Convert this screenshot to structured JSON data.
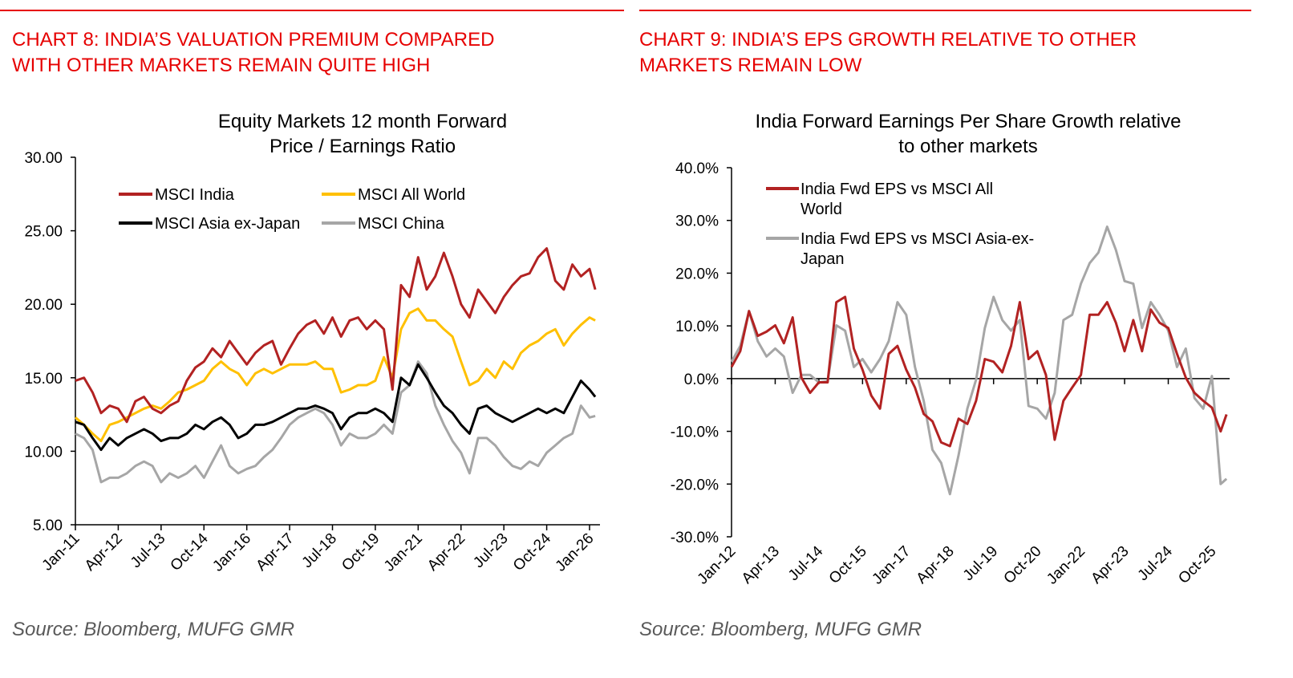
{
  "left": {
    "header": [
      "CHART 8: INDIA’S VALUATION PREMIUM COMPARED",
      "WITH OTHER MARKETS REMAIN QUITE HIGH"
    ],
    "source": "Source: Bloomberg, MUFG GMR"
  },
  "right": {
    "header": [
      "CHART 9: INDIA’S EPS GROWTH RELATIVE TO OTHER",
      "MARKETS REMAIN LOW"
    ],
    "source": "Source: Bloomberg, MUFG GMR"
  },
  "colors": {
    "header": "#e60000",
    "india": "#b22222",
    "world": "#ffc000",
    "asia": "#000000",
    "china": "#a6a6a6"
  },
  "chart_data": [
    {
      "type": "line",
      "title": [
        "Equity Markets 12 month Forward",
        "Price / Earnings Ratio"
      ],
      "ylim": [
        5,
        30
      ],
      "yticks": [
        "30.00",
        "25.00",
        "20.00",
        "15.00",
        "10.00",
        "5.00"
      ],
      "xticks": [
        "Jan-11",
        "Apr-12",
        "Jul-13",
        "Oct-14",
        "Jan-16",
        "Apr-17",
        "Jul-18",
        "Oct-19",
        "Jan-21",
        "Apr-22",
        "Jul-23",
        "Oct-24",
        "Jan-26"
      ],
      "x": [
        "2011-01",
        "2011-04",
        "2011-07",
        "2011-10",
        "2012-01",
        "2012-04",
        "2012-07",
        "2012-10",
        "2013-01",
        "2013-04",
        "2013-07",
        "2013-10",
        "2014-01",
        "2014-04",
        "2014-07",
        "2014-10",
        "2015-01",
        "2015-04",
        "2015-07",
        "2015-10",
        "2016-01",
        "2016-04",
        "2016-07",
        "2016-10",
        "2017-01",
        "2017-04",
        "2017-07",
        "2017-10",
        "2018-01",
        "2018-04",
        "2018-07",
        "2018-10",
        "2019-01",
        "2019-04",
        "2019-07",
        "2019-10",
        "2020-01",
        "2020-04",
        "2020-07",
        "2020-10",
        "2021-01",
        "2021-04",
        "2021-07",
        "2021-10",
        "2022-01",
        "2022-04",
        "2022-07",
        "2022-10",
        "2023-01",
        "2023-04",
        "2023-07",
        "2023-10",
        "2024-01",
        "2024-04",
        "2024-07",
        "2024-10",
        "2025-01",
        "2025-04",
        "2025-07",
        "2025-10",
        "2026-01",
        "2026-03"
      ],
      "legend": "top-left",
      "series": [
        {
          "name": "MSCI India",
          "color": "#b22222",
          "values": [
            14.8,
            15.0,
            14.0,
            12.6,
            13.1,
            12.9,
            12.0,
            13.4,
            13.7,
            12.9,
            12.6,
            13.1,
            13.4,
            14.8,
            15.7,
            16.1,
            17.0,
            16.4,
            17.5,
            16.7,
            15.9,
            16.7,
            17.2,
            17.5,
            15.9,
            17.0,
            18.0,
            18.6,
            18.9,
            18.0,
            19.1,
            17.8,
            18.9,
            19.1,
            18.3,
            18.9,
            18.3,
            14.2,
            21.3,
            20.5,
            23.2,
            21.0,
            21.9,
            23.5,
            21.9,
            20.0,
            19.1,
            21.0,
            20.2,
            19.4,
            20.5,
            21.3,
            21.9,
            22.1,
            23.2,
            23.8,
            21.6,
            21.0,
            22.7,
            21.9,
            22.4,
            21.0
          ]
        },
        {
          "name": "MSCI All World",
          "color": "#ffc000",
          "values": [
            12.3,
            11.8,
            11.2,
            10.7,
            11.8,
            12.0,
            12.3,
            12.6,
            12.9,
            13.1,
            12.9,
            13.4,
            14.0,
            14.2,
            14.5,
            14.8,
            15.6,
            16.1,
            15.6,
            15.3,
            14.5,
            15.3,
            15.6,
            15.3,
            15.6,
            15.9,
            15.9,
            15.9,
            16.1,
            15.6,
            15.6,
            14.0,
            14.2,
            14.5,
            14.5,
            14.8,
            16.4,
            15.0,
            18.3,
            19.4,
            19.7,
            18.9,
            18.9,
            18.3,
            17.8,
            16.1,
            14.5,
            14.8,
            15.6,
            15.0,
            16.1,
            15.6,
            16.7,
            17.2,
            17.5,
            18.0,
            18.3,
            17.2,
            18.0,
            18.6,
            19.1,
            18.9
          ]
        },
        {
          "name": "MSCI Asia ex-Japan",
          "color": "#000000",
          "values": [
            12.0,
            11.8,
            10.9,
            10.1,
            10.9,
            10.4,
            10.9,
            11.2,
            11.5,
            11.2,
            10.7,
            10.9,
            10.9,
            11.2,
            11.8,
            11.5,
            12.0,
            12.3,
            11.8,
            10.9,
            11.2,
            11.8,
            11.8,
            12.0,
            12.3,
            12.6,
            12.9,
            12.9,
            13.1,
            12.9,
            12.6,
            11.5,
            12.3,
            12.6,
            12.6,
            12.9,
            12.6,
            12.0,
            15.0,
            14.5,
            15.9,
            15.0,
            14.0,
            13.1,
            12.6,
            11.8,
            11.2,
            12.9,
            13.1,
            12.6,
            12.3,
            12.0,
            12.3,
            12.6,
            12.9,
            12.6,
            12.9,
            12.6,
            13.7,
            14.8,
            14.2,
            13.7
          ]
        },
        {
          "name": "MSCI China",
          "color": "#a6a6a6",
          "values": [
            11.2,
            10.9,
            10.1,
            7.9,
            8.2,
            8.2,
            8.5,
            9.0,
            9.3,
            9.0,
            7.9,
            8.5,
            8.2,
            8.5,
            9.0,
            8.2,
            9.3,
            10.4,
            9.0,
            8.5,
            8.8,
            9.0,
            9.6,
            10.1,
            10.9,
            11.8,
            12.3,
            12.6,
            12.9,
            12.6,
            11.8,
            10.4,
            11.2,
            10.9,
            10.9,
            11.2,
            11.8,
            11.2,
            14.0,
            14.5,
            16.1,
            15.3,
            13.1,
            11.8,
            10.7,
            9.9,
            8.5,
            10.9,
            10.9,
            10.4,
            9.6,
            9.0,
            8.8,
            9.3,
            9.0,
            9.9,
            10.4,
            10.9,
            11.2,
            13.1,
            12.3,
            12.4
          ]
        }
      ]
    },
    {
      "type": "line",
      "title": [
        "India Forward Earnings Per Share Growth relative",
        "to other markets"
      ],
      "ylim": [
        -30,
        40
      ],
      "yticks": [
        "40.0%",
        "30.0%",
        "20.0%",
        "10.0%",
        "0.0%",
        "-10.0%",
        "-20.0%",
        "-30.0%"
      ],
      "xticks": [
        "Jan-12",
        "Apr-13",
        "Jul-14",
        "Oct-15",
        "Jan-17",
        "Apr-18",
        "Jul-19",
        "Oct-20",
        "Jan-22",
        "Apr-23",
        "Jul-24",
        "Oct-25"
      ],
      "x": [
        "2012-01",
        "2012-04",
        "2012-07",
        "2012-10",
        "2013-01",
        "2013-04",
        "2013-07",
        "2013-10",
        "2014-01",
        "2014-04",
        "2014-07",
        "2014-10",
        "2015-01",
        "2015-04",
        "2015-07",
        "2015-10",
        "2016-01",
        "2016-04",
        "2016-07",
        "2016-10",
        "2017-01",
        "2017-04",
        "2017-07",
        "2017-10",
        "2018-01",
        "2018-04",
        "2018-07",
        "2018-10",
        "2019-01",
        "2019-04",
        "2019-07",
        "2019-10",
        "2020-01",
        "2020-04",
        "2020-07",
        "2020-10",
        "2021-01",
        "2021-04",
        "2021-07",
        "2021-10",
        "2022-01",
        "2022-04",
        "2022-07",
        "2022-10",
        "2023-01",
        "2023-04",
        "2023-07",
        "2023-10",
        "2024-01",
        "2024-04",
        "2024-07",
        "2024-10",
        "2025-01",
        "2025-04",
        "2025-07",
        "2025-10",
        "2026-01",
        "2026-03"
      ],
      "legend": "top-left",
      "series": [
        {
          "name": "India Fwd EPS vs MSCI All World",
          "legend_lines": [
            "India Fwd EPS vs MSCI All",
            "World"
          ],
          "color": "#b22222",
          "values": [
            2.2,
            5.2,
            12.8,
            8.1,
            8.9,
            10.1,
            6.7,
            11.6,
            0.2,
            -2.7,
            -0.7,
            -0.7,
            14.5,
            15.5,
            5.7,
            1.7,
            -3.2,
            -5.7,
            4.7,
            6.2,
            1.7,
            -1.7,
            -6.7,
            -8.1,
            -12.1,
            -12.8,
            -7.6,
            -8.6,
            -4.2,
            3.7,
            3.2,
            1.2,
            6.2,
            14.5,
            3.7,
            5.2,
            0.7,
            -11.6,
            -4.2,
            -1.7,
            0.7,
            12.1,
            12.1,
            14.5,
            10.6,
            5.2,
            11.1,
            5.2,
            13.1,
            10.6,
            9.6,
            4.7,
            0.2,
            -2.7,
            -4.2,
            -5.5,
            -10.0,
            -6.8
          ]
        },
        {
          "name": "India Fwd EPS vs MSCI Asia-ex-Japan",
          "legend_lines": [
            "India Fwd EPS vs MSCI Asia-ex-",
            "Japan"
          ],
          "color": "#a6a6a6",
          "values": [
            3.2,
            6.2,
            12.8,
            7.1,
            4.2,
            5.7,
            4.2,
            -2.7,
            0.7,
            0.7,
            -0.7,
            -0.5,
            10.1,
            9.1,
            2.2,
            3.7,
            1.2,
            3.7,
            7.1,
            14.5,
            12.1,
            2.2,
            -4.2,
            -13.5,
            -16.0,
            -21.9,
            -14.5,
            -5.7,
            -0.2,
            9.6,
            15.5,
            11.1,
            9.1,
            11.1,
            -5.2,
            -5.7,
            -7.6,
            -2.7,
            11.1,
            12.1,
            18.0,
            21.9,
            23.9,
            28.8,
            24.4,
            18.5,
            18.0,
            9.6,
            14.5,
            12.1,
            9.1,
            2.2,
            5.7,
            -3.7,
            -5.7,
            0.5,
            -20.0,
            -19.0
          ]
        }
      ]
    }
  ]
}
